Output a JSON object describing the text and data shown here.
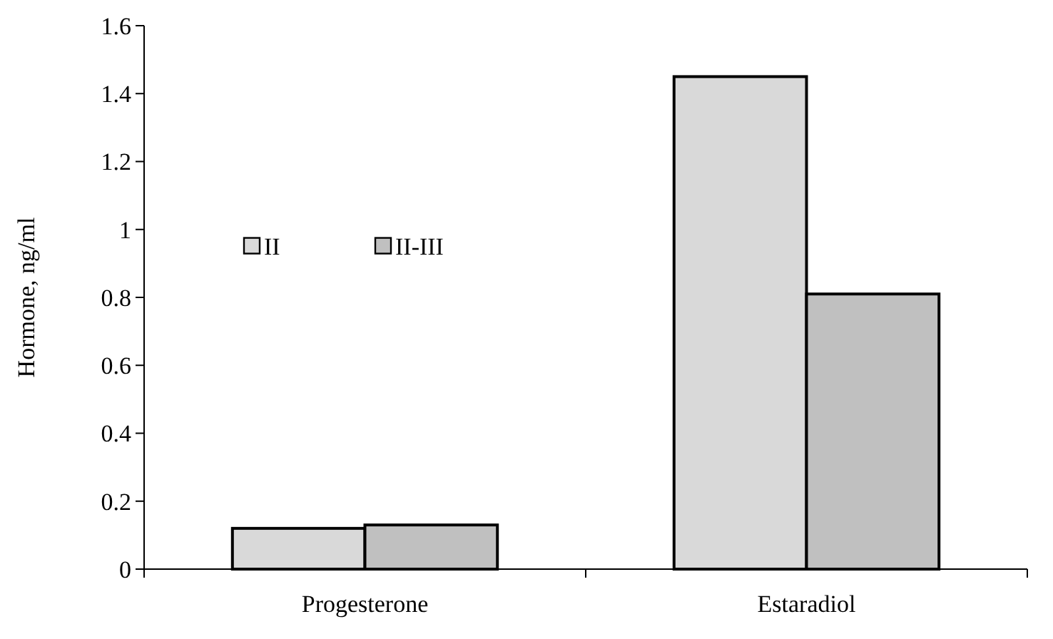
{
  "chart_data": {
    "type": "bar",
    "ylabel": "Hormone, ng/ml",
    "categories": [
      "Progesterone",
      "Estaradiol"
    ],
    "series": [
      {
        "name": "II",
        "color": "#d9d9d9",
        "values": [
          0.12,
          1.45
        ]
      },
      {
        "name": "II-III",
        "color": "#c0c0c0",
        "values": [
          0.13,
          0.81
        ]
      }
    ],
    "ylim": [
      0,
      1.6
    ],
    "yticks": [
      0,
      0.2,
      0.4,
      0.6,
      0.8,
      1,
      1.2,
      1.4,
      1.6
    ],
    "legend": "left",
    "grid": false
  }
}
